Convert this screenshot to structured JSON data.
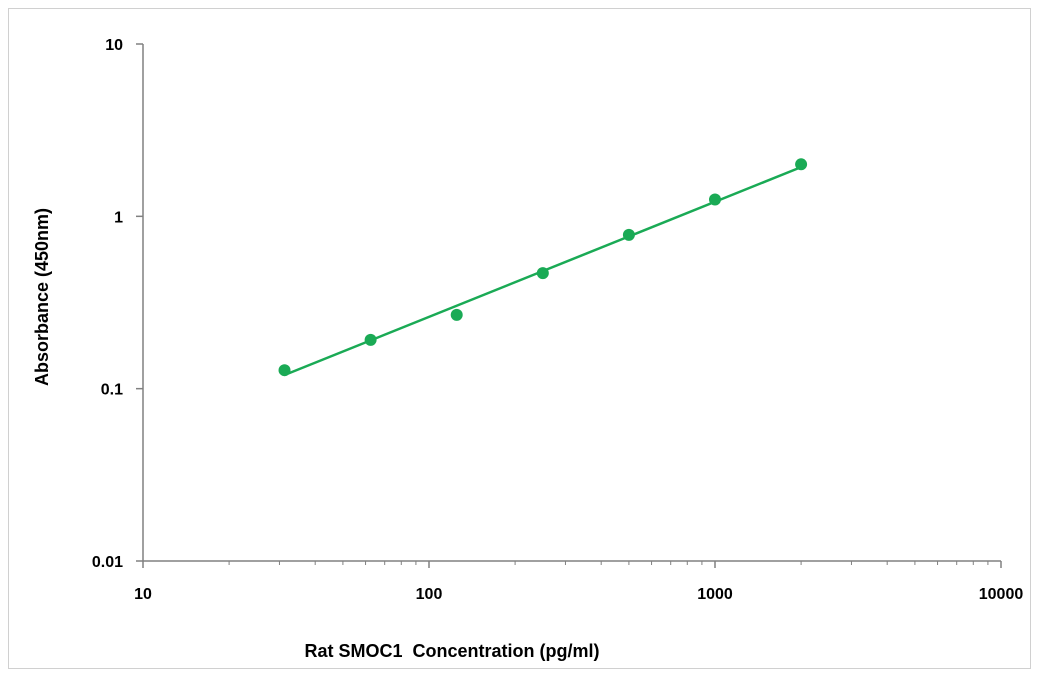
{
  "chart_data": {
    "type": "scatter",
    "title": "",
    "xlabel": "Rat SMOC1  Concentration (pg/ml)",
    "ylabel": "Absorbance (450nm)",
    "xscale": "log",
    "yscale": "log",
    "xlim": [
      10,
      10000
    ],
    "ylim": [
      0.01,
      10
    ],
    "x_ticks": [
      "10",
      "100",
      "1000",
      "10000"
    ],
    "y_ticks": [
      "0.01",
      "0.1",
      "1",
      "10"
    ],
    "grid": false,
    "legend": "none",
    "colors": {
      "series": "#1aaa55",
      "axis": "#808080"
    },
    "series": [
      {
        "x": [
          31.25,
          62.5,
          125,
          250,
          500,
          1000,
          2000
        ],
        "y": [
          0.128,
          0.192,
          0.268,
          0.468,
          0.78,
          1.252,
          2.004
        ]
      }
    ],
    "trendline": {
      "type": "power",
      "from": 31.25,
      "to": 2000,
      "start_y": 0.12,
      "end_y": 1.93
    }
  }
}
